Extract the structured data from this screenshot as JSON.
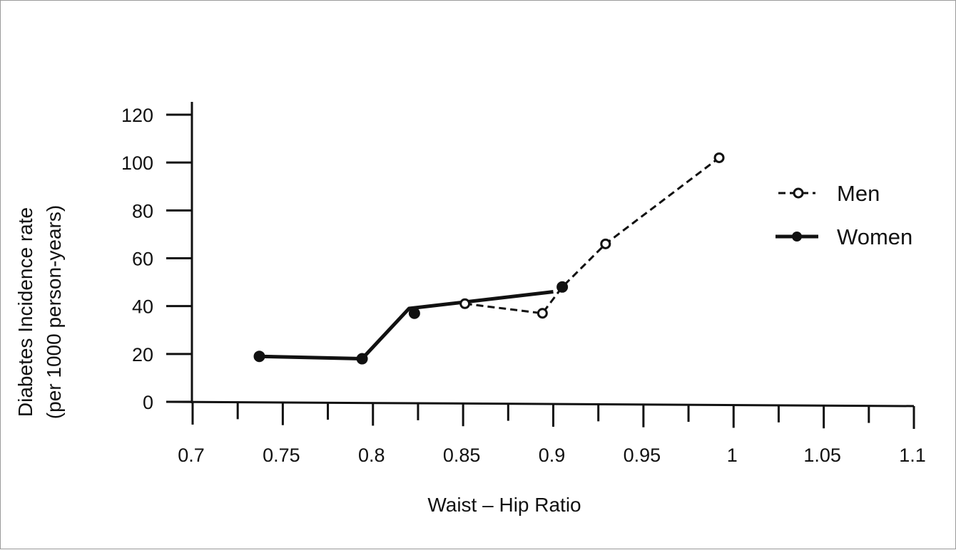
{
  "chart_data": {
    "type": "line",
    "title": "",
    "xlabel": "Waist – Hip Ratio",
    "ylabel_lines": [
      "Diabetes Incidence rate",
      "(per 1000 person-years)"
    ],
    "xlim": [
      0.7,
      1.1
    ],
    "ylim": [
      0,
      120
    ],
    "x_ticks": [
      0.7,
      0.75,
      0.8,
      0.85,
      0.9,
      0.95,
      1,
      1.05,
      1.1
    ],
    "x_tick_labels": [
      "0.7",
      "0.75",
      "0.8",
      "0.85",
      "0.9",
      "0.95",
      "1",
      "1.05",
      "1.1"
    ],
    "x_minor_ticks": [
      0.725,
      0.775,
      0.825,
      0.875,
      0.925,
      0.975,
      1.025,
      1.075
    ],
    "y_ticks": [
      0,
      20,
      40,
      60,
      80,
      100,
      120
    ],
    "y_tick_labels": [
      "0",
      "20",
      "40",
      "60",
      "80",
      "100",
      "120"
    ],
    "grid": false,
    "legend_position": "right",
    "series": [
      {
        "name": "Men",
        "marker": "open-circle",
        "line_style": "dashed",
        "color": "#111111",
        "points": [
          [
            0.851,
            41
          ],
          [
            0.894,
            37
          ],
          [
            0.905,
            48
          ],
          [
            0.929,
            66
          ],
          [
            0.992,
            102
          ]
        ]
      },
      {
        "name": "Women",
        "marker": "filled-circle",
        "line_style": "solid",
        "color": "#111111",
        "points": [
          [
            0.737,
            19
          ],
          [
            0.794,
            18
          ],
          [
            0.823,
            37
          ],
          [
            0.905,
            48
          ]
        ]
      }
    ],
    "women_line": [
      [
        0.737,
        19
      ],
      [
        0.794,
        18
      ],
      [
        0.82,
        39
      ],
      [
        0.9,
        46
      ]
    ]
  }
}
